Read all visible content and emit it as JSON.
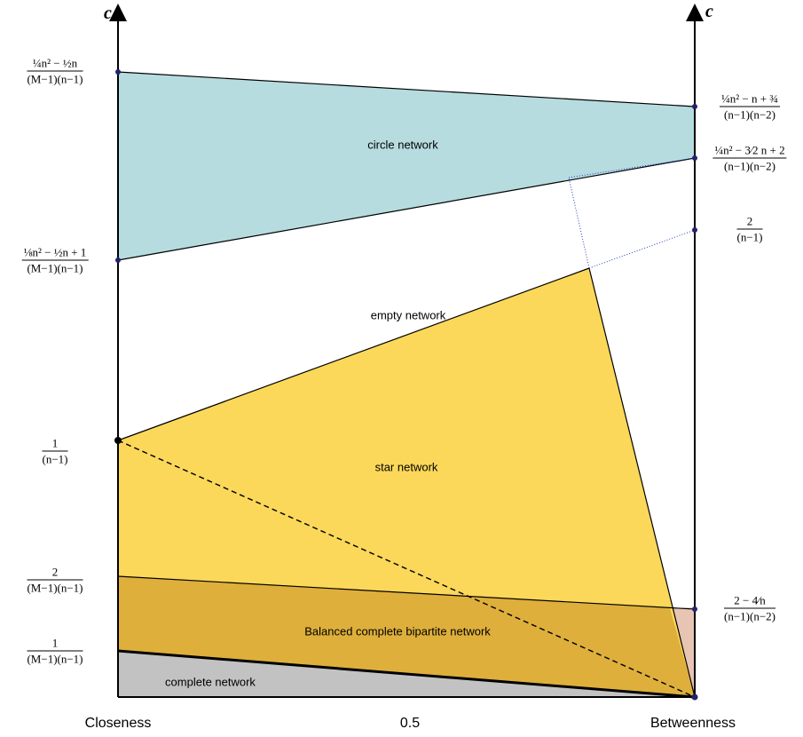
{
  "colors": {
    "circle": "#b6dcdf",
    "star": "#fbd85a",
    "bipartite": "#d4a232",
    "complete": "#c2c2c2",
    "pink": "#e8c4b4",
    "edge": "#000000",
    "dot": "#23226e",
    "dotted_line": "#2c3ac7"
  },
  "axes": {
    "left_var": "c",
    "right_var": "c",
    "bottom_left": "Closeness",
    "bottom_mid": "0.5",
    "bottom_right": "Betweenness"
  },
  "regions": {
    "circle": "circle network",
    "empty": "empty network",
    "star": "star network",
    "bipartite": "Balanced complete bipartite network",
    "complete": "complete network"
  },
  "left_labels": [
    {
      "num": "¼n² − ½n",
      "den": "(M−1)(n−1)"
    },
    {
      "num": "⅛n² − ½n + 1",
      "den": "(M−1)(n−1)"
    },
    {
      "num": "1",
      "den": "(n−1)"
    },
    {
      "num": "2",
      "den": "(M−1)(n−1)"
    },
    {
      "num": "1",
      "den": "(M−1)(n−1)"
    }
  ],
  "right_labels": [
    {
      "num": "¼n² − n + ¾",
      "den": "(n−1)(n−2)"
    },
    {
      "num": "¼n² − 3⁄2 n + 2",
      "den": "(n−1)(n−2)"
    },
    {
      "num": "2",
      "den": "(n−1)"
    },
    {
      "num": "2 − 4⁄n",
      "den": "(n−1)(n−2)"
    }
  ]
}
